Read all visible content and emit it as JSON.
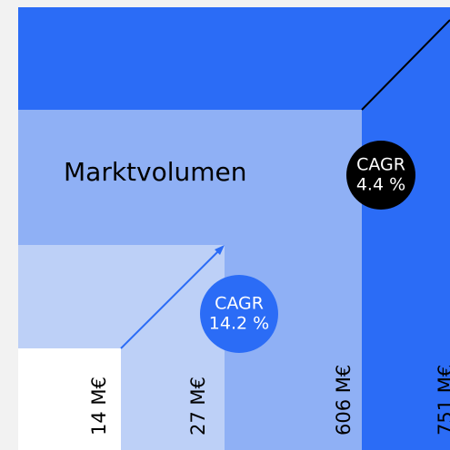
{
  "title": "Marktvolumen",
  "segments": [
    {
      "label": "14 M€"
    },
    {
      "label": "27 M€"
    },
    {
      "label": "606 M€"
    },
    {
      "label": "751 M€"
    }
  ],
  "cagr": [
    {
      "label": "CAGR",
      "value": "14.2 %"
    },
    {
      "label": "CAGR",
      "value": "4.4 %"
    }
  ]
}
